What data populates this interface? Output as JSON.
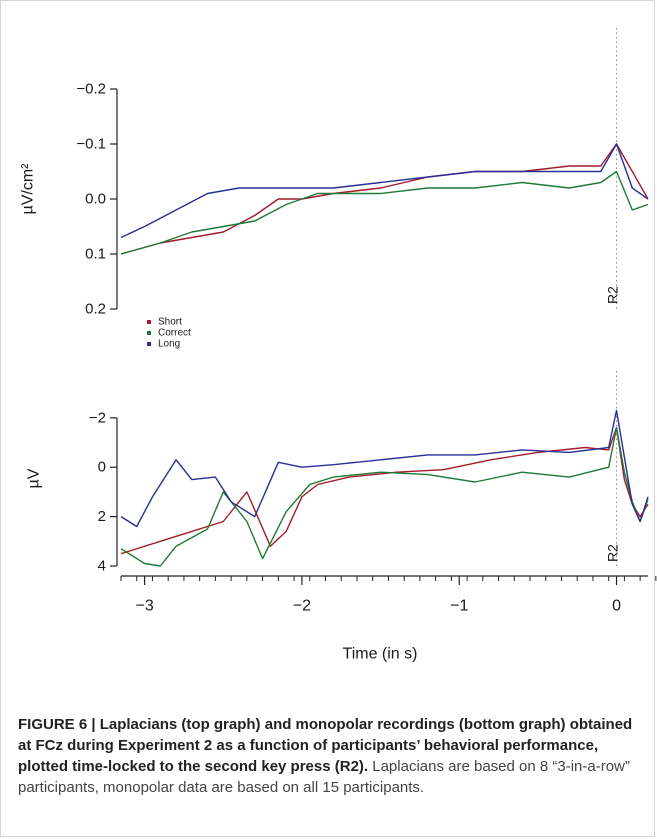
{
  "chart_data": [
    {
      "type": "line",
      "title": "",
      "xlabel": "",
      "ylabel": "µV/cm²",
      "x_range": [
        -3.15,
        0.2
      ],
      "ylim": [
        -0.2,
        0.2
      ],
      "y_inverted": true,
      "y_ticks": [
        -0.2,
        -0.1,
        0.0,
        0.1,
        0.2
      ],
      "y_tick_labels": [
        "−0.2",
        "−0.1",
        "0.0",
        "0.1",
        "0.2"
      ],
      "marker": {
        "x": 0,
        "label": "R2"
      },
      "legend": {
        "placement": "bottom-left",
        "entries": [
          "Short",
          "Correct",
          "Long"
        ]
      },
      "series": [
        {
          "name": "Short",
          "color": "#a11d2b",
          "x": [
            -3.15,
            -2.9,
            -2.7,
            -2.5,
            -2.3,
            -2.15,
            -2.0,
            -1.8,
            -1.5,
            -1.2,
            -0.9,
            -0.6,
            -0.3,
            -0.1,
            0.0,
            0.1,
            0.2
          ],
          "values": [
            0.1,
            0.08,
            0.07,
            0.06,
            0.03,
            0.0,
            0.0,
            -0.01,
            -0.02,
            -0.04,
            -0.05,
            -0.05,
            -0.06,
            -0.06,
            -0.1,
            -0.05,
            0.0
          ]
        },
        {
          "name": "Correct",
          "color": "#1e7a35",
          "x": [
            -3.15,
            -2.9,
            -2.7,
            -2.5,
            -2.3,
            -2.1,
            -1.9,
            -1.5,
            -1.2,
            -0.9,
            -0.6,
            -0.3,
            -0.1,
            0.0,
            0.1,
            0.2
          ],
          "values": [
            0.1,
            0.08,
            0.06,
            0.05,
            0.04,
            0.01,
            -0.01,
            -0.01,
            -0.02,
            -0.02,
            -0.03,
            -0.02,
            -0.03,
            -0.05,
            0.02,
            0.01
          ]
        },
        {
          "name": "Long",
          "color": "#2a2f96",
          "x": [
            -3.15,
            -3.0,
            -2.8,
            -2.6,
            -2.4,
            -2.2,
            -2.0,
            -1.8,
            -1.5,
            -1.2,
            -0.9,
            -0.6,
            -0.3,
            -0.1,
            0.0,
            0.1,
            0.2
          ],
          "values": [
            0.07,
            0.05,
            0.02,
            -0.01,
            -0.02,
            -0.02,
            -0.02,
            -0.02,
            -0.03,
            -0.04,
            -0.05,
            -0.05,
            -0.05,
            -0.05,
            -0.1,
            -0.02,
            0.0
          ]
        }
      ]
    },
    {
      "type": "line",
      "title": "",
      "xlabel": "Time (in s)",
      "ylabel": "µV",
      "x_range": [
        -3.15,
        0.2
      ],
      "xlim": [
        -3.15,
        0.2
      ],
      "x_ticks": [
        -3,
        -2,
        -1,
        0
      ],
      "x_tick_labels": [
        "−3",
        "−2",
        "−1",
        "0"
      ],
      "x_minor_step": 0.1,
      "ylim": [
        -2.6,
        4
      ],
      "y_inverted": true,
      "y_ticks": [
        -2,
        0,
        2,
        4
      ],
      "y_tick_labels": [
        "−2",
        "0",
        "2",
        "4"
      ],
      "marker": {
        "x": 0,
        "label": "R2"
      },
      "series": [
        {
          "name": "Short",
          "color": "#a11d2b",
          "x": [
            -3.15,
            -2.9,
            -2.7,
            -2.5,
            -2.35,
            -2.2,
            -2.1,
            -2.0,
            -1.9,
            -1.7,
            -1.4,
            -1.1,
            -0.8,
            -0.5,
            -0.2,
            -0.05,
            0.0,
            0.05,
            0.1,
            0.15,
            0.2
          ],
          "values": [
            3.5,
            3.0,
            2.6,
            2.2,
            1.0,
            3.2,
            2.6,
            1.2,
            0.7,
            0.4,
            0.2,
            0.1,
            -0.3,
            -0.6,
            -0.8,
            -0.7,
            -1.6,
            0.5,
            1.5,
            2.0,
            1.5
          ]
        },
        {
          "name": "Correct",
          "color": "#1e7a35",
          "x": [
            -3.15,
            -3.0,
            -2.9,
            -2.8,
            -2.6,
            -2.5,
            -2.35,
            -2.25,
            -2.1,
            -1.95,
            -1.8,
            -1.5,
            -1.2,
            -0.9,
            -0.6,
            -0.3,
            -0.05,
            0.0,
            0.05,
            0.1,
            0.15,
            0.2
          ],
          "values": [
            3.3,
            3.9,
            4.0,
            3.2,
            2.5,
            1.0,
            2.2,
            3.7,
            1.8,
            0.7,
            0.4,
            0.2,
            0.3,
            0.6,
            0.2,
            0.4,
            0.0,
            -1.6,
            0.2,
            1.4,
            2.2,
            1.3
          ]
        },
        {
          "name": "Long",
          "color": "#2a2f96",
          "x": [
            -3.15,
            -3.05,
            -2.95,
            -2.8,
            -2.7,
            -2.55,
            -2.45,
            -2.3,
            -2.15,
            -2.0,
            -1.8,
            -1.5,
            -1.2,
            -0.9,
            -0.6,
            -0.3,
            -0.05,
            0.0,
            0.05,
            0.1,
            0.15,
            0.2
          ],
          "values": [
            2.0,
            2.4,
            1.2,
            -0.3,
            0.5,
            0.4,
            1.4,
            2.0,
            -0.2,
            0.0,
            -0.1,
            -0.3,
            -0.5,
            -0.5,
            -0.7,
            -0.6,
            -0.8,
            -2.3,
            -0.4,
            1.5,
            2.2,
            1.2
          ]
        }
      ]
    }
  ],
  "caption": {
    "title": "FIGURE 6 | Laplacians (top graph) and monopolar recordings (bottom graph) obtained at FCz during Experiment 2 as a function of participants’ behavioral performance, plotted time-locked to the second key press (R2).",
    "body": " Laplacians are based on 8 “3-in-a-row” participants, monopolar data are based on all 15 participants."
  }
}
